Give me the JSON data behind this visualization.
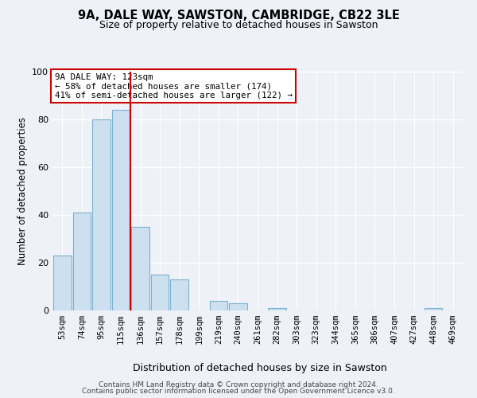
{
  "title": "9A, DALE WAY, SAWSTON, CAMBRIDGE, CB22 3LE",
  "subtitle": "Size of property relative to detached houses in Sawston",
  "xlabel": "Distribution of detached houses by size in Sawston",
  "ylabel": "Number of detached properties",
  "bar_labels": [
    "53sqm",
    "74sqm",
    "95sqm",
    "115sqm",
    "136sqm",
    "157sqm",
    "178sqm",
    "199sqm",
    "219sqm",
    "240sqm",
    "261sqm",
    "282sqm",
    "303sqm",
    "323sqm",
    "344sqm",
    "365sqm",
    "386sqm",
    "407sqm",
    "427sqm",
    "448sqm",
    "469sqm"
  ],
  "bar_values": [
    23,
    41,
    80,
    84,
    35,
    15,
    13,
    0,
    4,
    3,
    0,
    1,
    0,
    0,
    0,
    0,
    0,
    0,
    0,
    1,
    0
  ],
  "bar_color": "#cce0f0",
  "bar_edgecolor": "#7ab0d0",
  "property_line_index": 3.5,
  "property_line_color": "#cc0000",
  "ylim": [
    0,
    100
  ],
  "yticks": [
    0,
    20,
    40,
    60,
    80,
    100
  ],
  "ann_line1": "9A DALE WAY: 123sqm",
  "ann_line2": "← 58% of detached houses are smaller (174)",
  "ann_line3": "41% of semi-detached houses are larger (122) →",
  "footer_line1": "Contains HM Land Registry data © Crown copyright and database right 2024.",
  "footer_line2": "Contains public sector information licensed under the Open Government Licence v3.0.",
  "bg_color": "#eef2f8",
  "plot_bg_color": "#eef2f8",
  "grid_color": "#ffffff",
  "title_fontsize": 10.5,
  "subtitle_fontsize": 9
}
